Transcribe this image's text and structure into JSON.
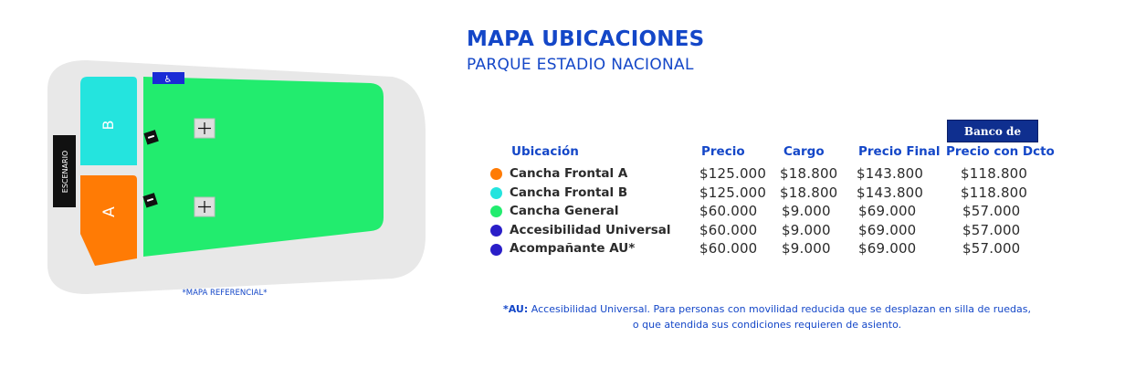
{
  "header": {
    "title": "MAPA UBICACIONES",
    "subtitle": "PARQUE ESTADIO NACIONAL"
  },
  "map": {
    "stage_label": "ESCENARIO",
    "section_a_label": "A",
    "section_b_label": "B",
    "reference_note": "*MAPA REFERENCIAL*",
    "accessibility_glyph": "♿",
    "colors": {
      "venue": "#e8e8e8",
      "general": "#22ec6e",
      "frontal_a": "#ff7b05",
      "frontal_b": "#24e4de",
      "stage": "#111111",
      "accessible": "#1a2bd6"
    }
  },
  "bank_logo": "Banco de Chile",
  "table": {
    "headers": {
      "location": "Ubicación",
      "price": "Precio",
      "charge": "Cargo",
      "final": "Precio Final",
      "discount": "Precio con Dcto"
    },
    "rows": [
      {
        "color": "#ff7b05",
        "location": "Cancha Frontal A",
        "price": "$125.000",
        "charge": "$18.800",
        "final": "$143.800",
        "discount": "$118.800"
      },
      {
        "color": "#24e4de",
        "location": "Cancha Frontal B",
        "price": "$125.000",
        "charge": "$18.800",
        "final": "$143.800",
        "discount": "$118.800"
      },
      {
        "color": "#22ec6e",
        "location": "Cancha General",
        "price": "$60.000",
        "charge": "$9.000",
        "final": "$69.000",
        "discount": "$57.000"
      },
      {
        "color": "#2a1ec8",
        "location": "Accesibilidad Universal",
        "price": "$60.000",
        "charge": "$9.000",
        "final": "$69.000",
        "discount": "$57.000"
      },
      {
        "color": "#2a1ec8",
        "location": "Acompañante AU*",
        "price": "$60.000",
        "charge": "$9.000",
        "final": "$69.000",
        "discount": "$57.000"
      }
    ]
  },
  "footnote": {
    "marker": "*AU:",
    "line1": "Accesibilidad Universal. Para personas con movilidad reducida que se desplazan en silla de ruedas,",
    "line2": "o que atendida sus condiciones requieren de asiento."
  }
}
